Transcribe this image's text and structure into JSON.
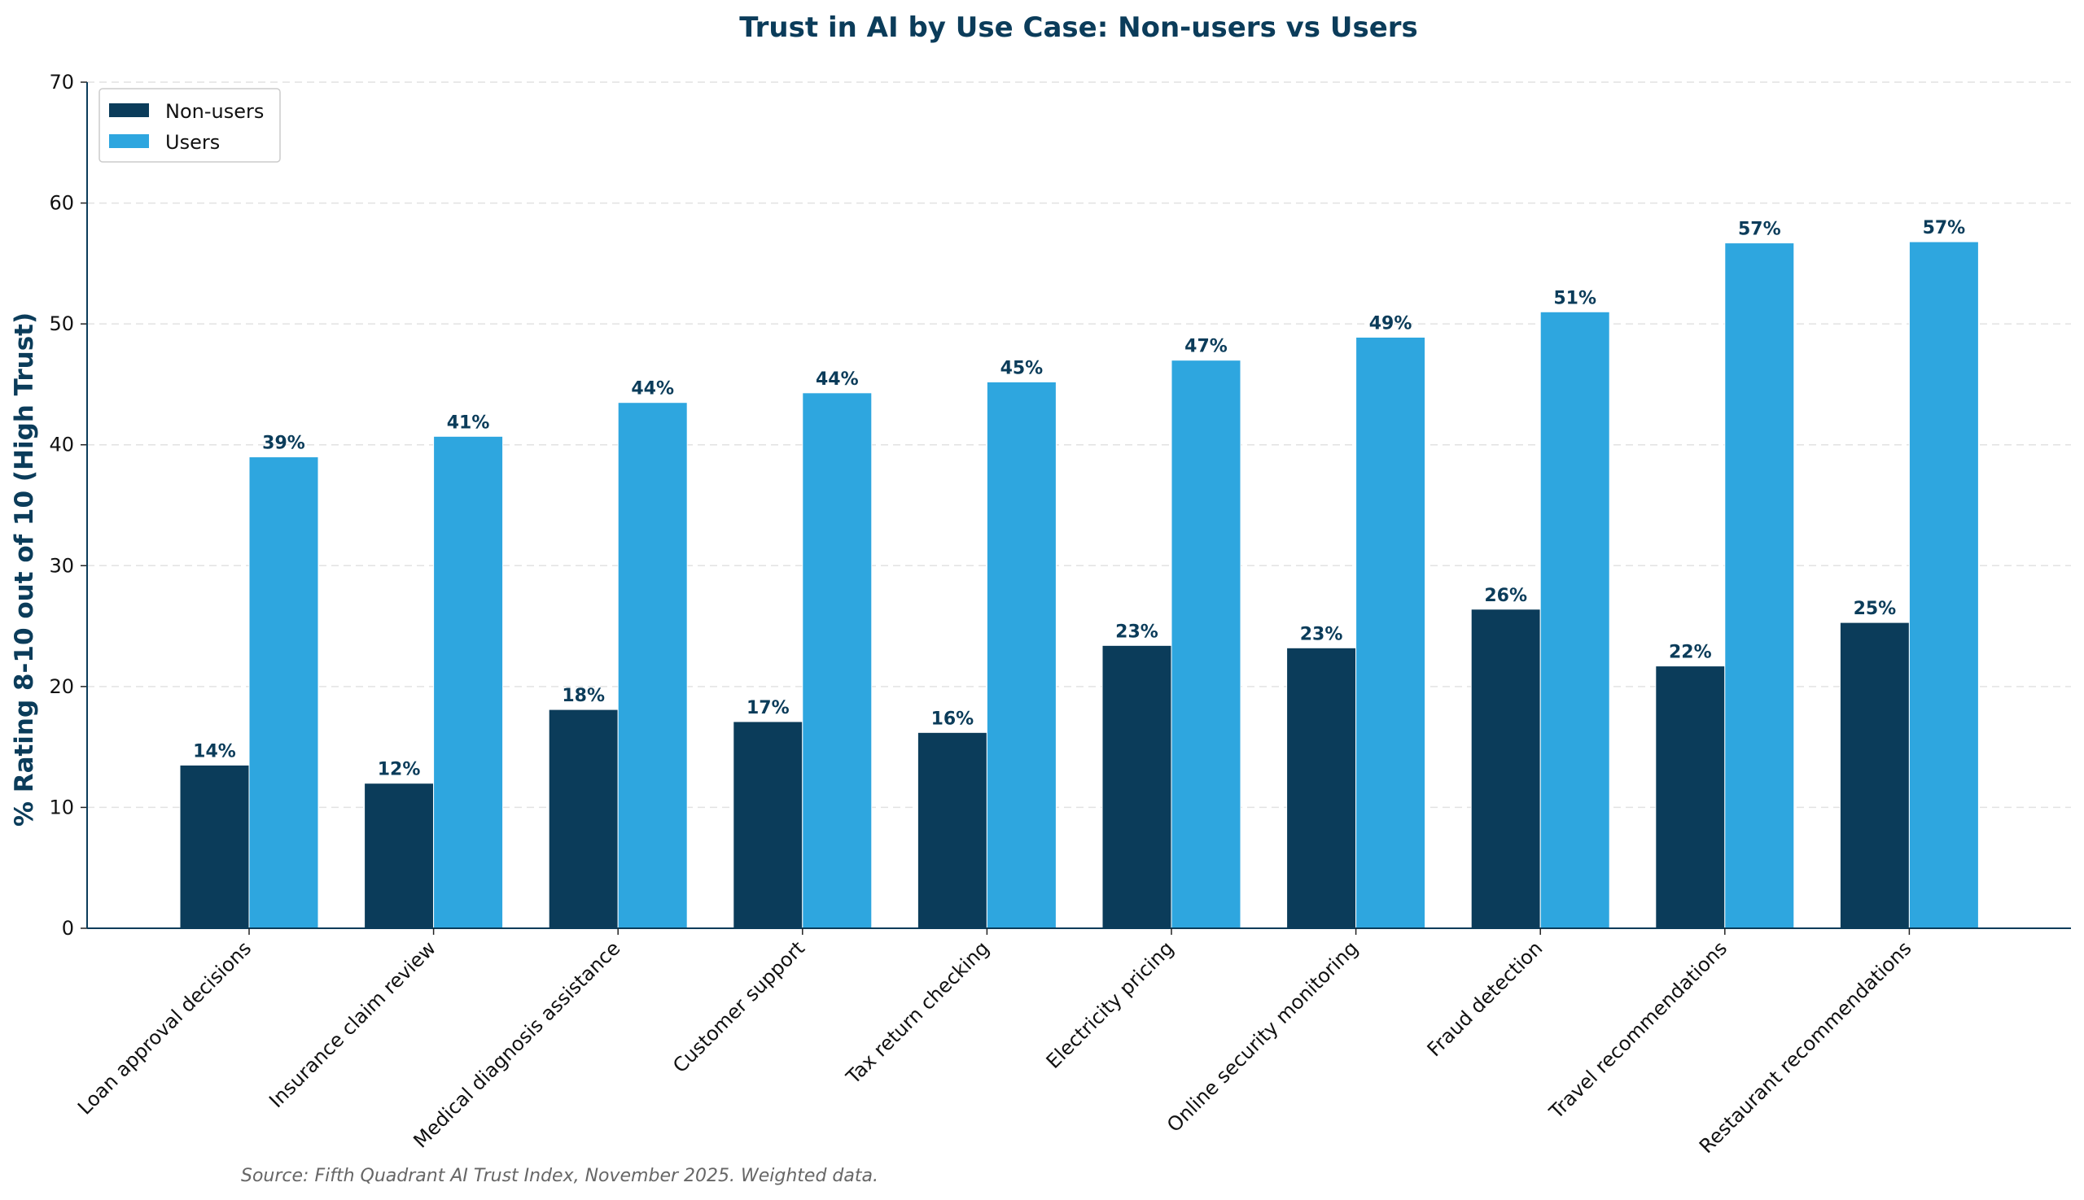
{
  "chart_data": {
    "type": "bar",
    "title": "Trust in AI by Use Case: Non-users vs Users",
    "xlabel": "",
    "ylabel": "% Rating 8-10 out of 10 (High Trust)",
    "ylim": [
      0,
      70
    ],
    "yticks": [
      "0",
      "10",
      "20",
      "30",
      "40",
      "50",
      "60",
      "70"
    ],
    "grid": "horizontal dashed",
    "legend_position": "top-left",
    "categories": [
      "Loan approval decisions",
      "Insurance claim review",
      "Medical diagnosis assistance",
      "Customer support",
      "Tax return checking",
      "Electricity pricing",
      "Online security monitoring",
      "Fraud detection",
      "Travel recommendations",
      "Restaurant recommendations"
    ],
    "series": [
      {
        "name": "Non-users",
        "color": "#0b3c5a",
        "values": [
          13.5,
          12.0,
          18.1,
          17.1,
          16.2,
          23.4,
          23.2,
          26.4,
          21.7,
          25.3
        ],
        "labels": [
          "14%",
          "12%",
          "18%",
          "17%",
          "16%",
          "23%",
          "23%",
          "26%",
          "22%",
          "25%"
        ]
      },
      {
        "name": "Users",
        "color": "#2ea6df",
        "values": [
          39.0,
          40.7,
          43.5,
          44.3,
          45.2,
          47.0,
          48.9,
          51.0,
          56.7,
          56.8
        ],
        "labels": [
          "39%",
          "41%",
          "44%",
          "44%",
          "45%",
          "47%",
          "49%",
          "51%",
          "57%",
          "57%"
        ]
      }
    ],
    "source_note": "Source: Fifth Quadrant AI Trust Index, November 2025. Weighted data."
  }
}
